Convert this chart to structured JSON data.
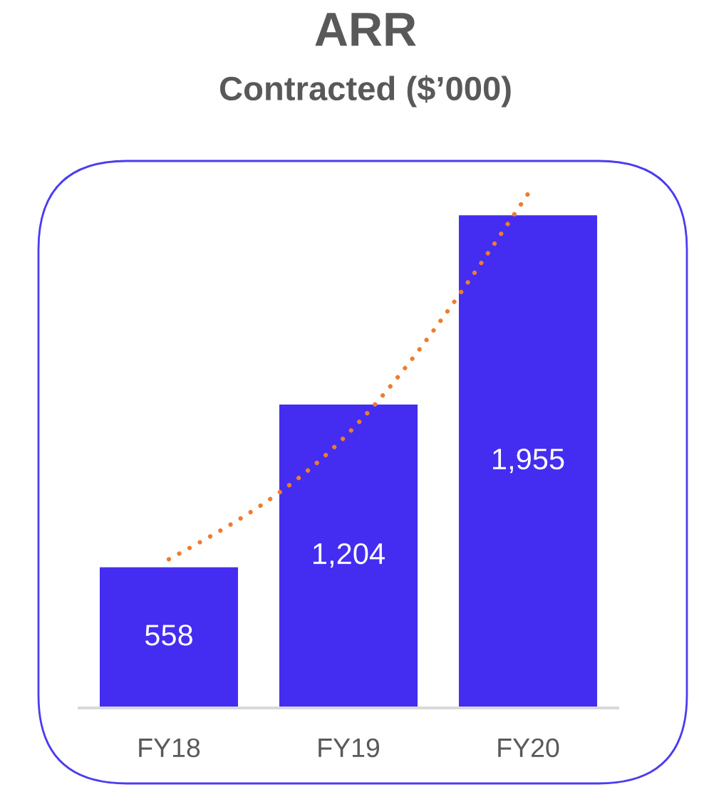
{
  "chart_data": {
    "type": "bar",
    "title": "ARR",
    "subtitle": "Contracted ($’000)",
    "categories": [
      "FY18",
      "FY19",
      "FY20"
    ],
    "series": [
      {
        "color": "#442df0",
        "values": [
          558,
          1204,
          1955
        ],
        "value_labels": [
          "558",
          "1,204",
          "1,955"
        ]
      },
      {
        "type": "line",
        "color": "#ed7d31",
        "line_style": "dotted",
        "values": [
          590,
          1090,
          2040
        ]
      }
    ],
    "tick_labels": "x"
  }
}
